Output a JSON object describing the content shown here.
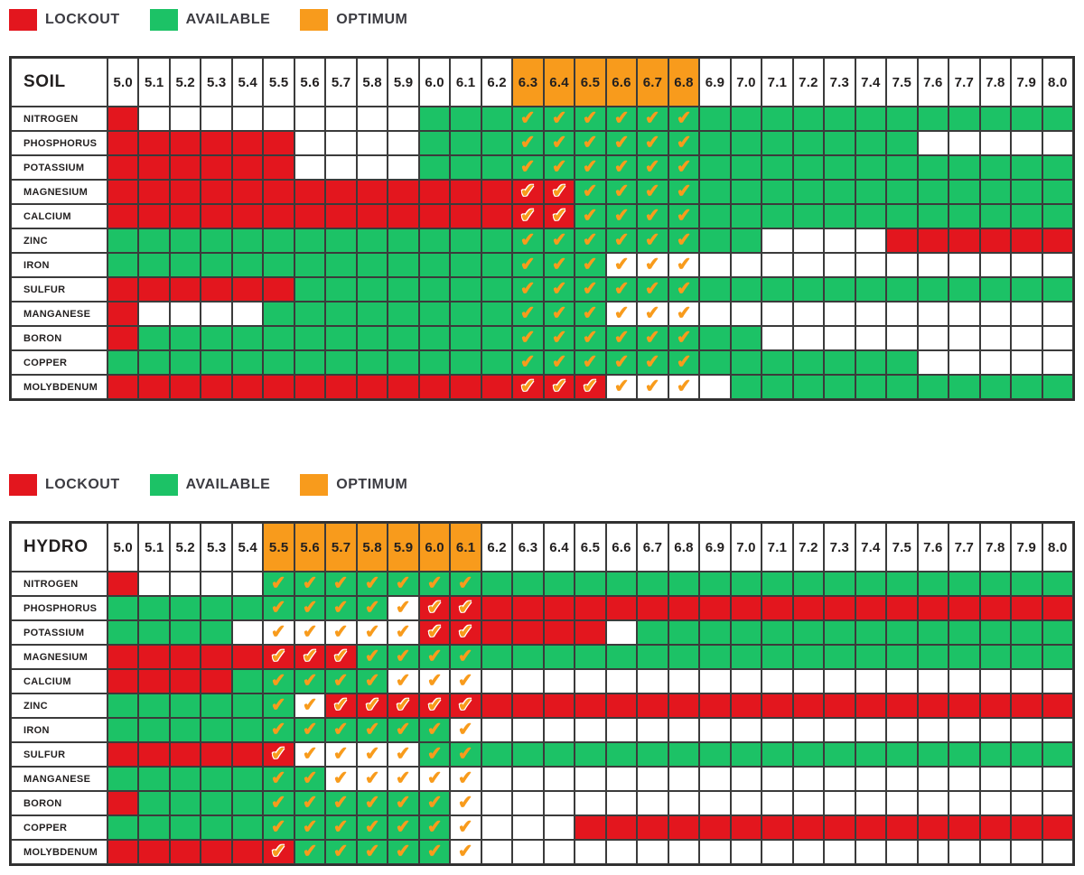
{
  "colors": {
    "lockout": "#E3161E",
    "available": "#1CC266",
    "optimum": "#F89B1C",
    "grid_line": "#3B3B3B",
    "frame": "#2E2E2E",
    "text": "#221F1F",
    "legend_text": "#3B3B41",
    "background": "#FFFFFF"
  },
  "check_glyph": "✔",
  "legend": {
    "items": [
      {
        "label": "LOCKOUT",
        "color": "#E3161E"
      },
      {
        "label": "AVAILABLE",
        "color": "#1CC266"
      },
      {
        "label": "OPTIMUM",
        "color": "#F89B1C"
      }
    ]
  },
  "chart_data": {
    "type": "heatmap",
    "ph_levels": [
      "5.0",
      "5.1",
      "5.2",
      "5.3",
      "5.4",
      "5.5",
      "5.6",
      "5.7",
      "5.8",
      "5.9",
      "6.0",
      "6.1",
      "6.2",
      "6.3",
      "6.4",
      "6.5",
      "6.6",
      "6.7",
      "6.8",
      "6.9",
      "7.0",
      "7.1",
      "7.2",
      "7.3",
      "7.4",
      "7.5",
      "7.6",
      "7.7",
      "7.8",
      "7.9",
      "8.0"
    ],
    "cell_states": {
      "R": "lockout",
      "G": "available",
      "W": "blank",
      "r": "lockout with optimum checkmark",
      "g": "available with optimum checkmark",
      "w": "blank with optimum checkmark"
    },
    "tables": [
      {
        "title": "SOIL",
        "optimum_range": [
          "6.3",
          "6.8"
        ],
        "optimum_start": 13,
        "optimum_end": 18,
        "rows": [
          {
            "label": "NITROGEN",
            "cells": "RWWWWWWWWWGGGggggggGGGGGGGGGGGG"
          },
          {
            "label": "PHOSPHORUS",
            "cells": "RRRRRRWWWWGGGggggggGGGGGGGWWWWW"
          },
          {
            "label": "POTASSIUM",
            "cells": "RRRRRRWWWWGGGggggggGGGGGGGGGGGG"
          },
          {
            "label": "MAGNESIUM",
            "cells": "RRRRRRRRRRRRRrrggggGGGGGGGGGGGG"
          },
          {
            "label": "CALCIUM",
            "cells": "RRRRRRRRRRRRRrrggggGGGGGGGGGGGG"
          },
          {
            "label": "ZINC",
            "cells": "GGGGGGGGGGGGGggggggGGWWWWRRRRRR"
          },
          {
            "label": "IRON",
            "cells": "GGGGGGGGGGGGGgggwwwWWWWWWWWWWWW"
          },
          {
            "label": "SULFUR",
            "cells": "RRRRRRGGGGGGGggggggGGGGGGGGGGGG"
          },
          {
            "label": "MANGANESE",
            "cells": "RWWWWGGGGGGGGgggwwwWWWWWWWWWWWW"
          },
          {
            "label": "BORON",
            "cells": "RGGGGGGGGGGGGggggggGGWWWWWWWWWW"
          },
          {
            "label": "COPPER",
            "cells": "GGGGGGGGGGGGGggggggGGGGGGGWWWWW"
          },
          {
            "label": "MOLYBDENUM",
            "cells": "RRRRRRRRRRRRRrrrwwwWGGGGGGGGGGG"
          }
        ]
      },
      {
        "title": "HYDRO",
        "optimum_range": [
          "5.5",
          "6.1"
        ],
        "optimum_start": 5,
        "optimum_end": 11,
        "rows": [
          {
            "label": "NITROGEN",
            "cells": "RWWWWgggggggGGGGGGGGGGGGGGGGGGG"
          },
          {
            "label": "PHOSPHORUS",
            "cells": "GGGGGggggwrrRRRRRRRRRRRRRRRRRRR"
          },
          {
            "label": "POTASSIUM",
            "cells": "GGGGWwwwwwrrRRRRWGGGGGGGGGGGGGG"
          },
          {
            "label": "MAGNESIUM",
            "cells": "RRRRRrrrggggGGGGGGGGGGGGGGGGGGG"
          },
          {
            "label": "CALCIUM",
            "cells": "RRRRGggggwwwWWWWWWWWWWWWWWWWWWW"
          },
          {
            "label": "ZINC",
            "cells": "GGGGGgwrrrrrRRRRRRRRRRRRRRRRRRR"
          },
          {
            "label": "IRON",
            "cells": "GGGGGggggggwWWWWWWWWWWWWWWWWWWW"
          },
          {
            "label": "SULFUR",
            "cells": "RRRRRrwwwwggGGGGGGGGGGGGGGGGGGG"
          },
          {
            "label": "MANGANESE",
            "cells": "GGGGGggwwwwwWWWWWWWWWWWWWWWWWWW"
          },
          {
            "label": "BORON",
            "cells": "RGGGGggggggwWWWWWWWWWWWWWWWWWWW"
          },
          {
            "label": "COPPER",
            "cells": "GGGGGggggggwWWWRRRRRRRRRRRRRRRR"
          },
          {
            "label": "MOLYBDENUM",
            "cells": "RRRRRrgggggwWWWWWWWWWWWWWWWWWWW"
          }
        ]
      }
    ]
  }
}
